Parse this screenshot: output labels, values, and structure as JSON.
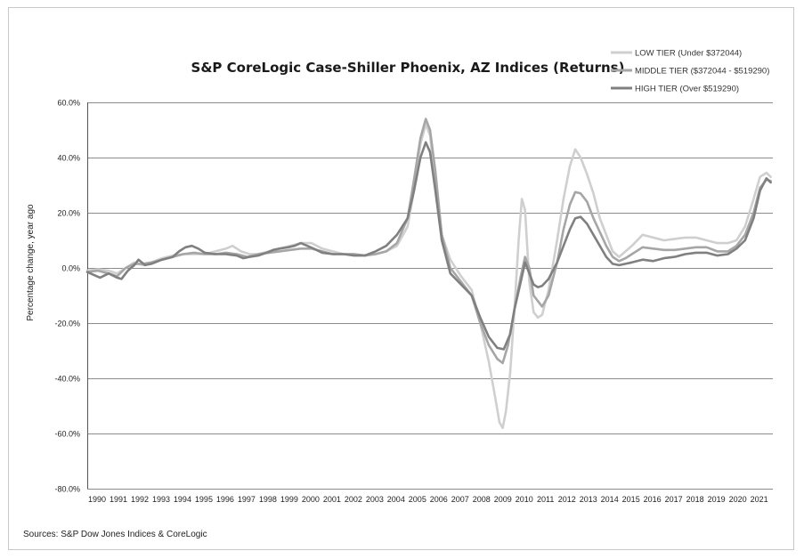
{
  "chart_data": {
    "type": "line",
    "title": "S&P CoreLogic Case-Shiller Phoenix, AZ Indices (Returns)",
    "ylabel": "Percentage change, year ago",
    "source": "Sources: S&P Dow Jones Indices & CoreLogic",
    "ylim": [
      -80,
      60
    ],
    "yticks": [
      60,
      40,
      20,
      0,
      -20,
      -40,
      -60,
      -80
    ],
    "ytick_labels": [
      "60.0%",
      "40.0%",
      "20.0%",
      "0.0%",
      "-20.0%",
      "-40.0%",
      "-60.0%",
      "-80.0%"
    ],
    "xlim": [
      1990,
      2022.1
    ],
    "xtick_labels": [
      "1990",
      "1991",
      "1992",
      "1993",
      "1994",
      "1995",
      "1996",
      "1997",
      "1998",
      "1999",
      "2000",
      "2001",
      "2002",
      "2003",
      "2004",
      "2005",
      "2006",
      "2007",
      "2008",
      "2009",
      "2010",
      "2011",
      "2012",
      "2013",
      "2014",
      "2015",
      "2016",
      "2017",
      "2018",
      "2019",
      "2020",
      "2021"
    ],
    "grid": true,
    "legend_position": "top-right",
    "series": [
      {
        "name": "LOW TIER (Under $372044)",
        "color": "#cfcfcf",
        "points": [
          [
            1990,
            -1
          ],
          [
            1990.5,
            -0.5
          ],
          [
            1991,
            -1
          ],
          [
            1991.4,
            -2
          ],
          [
            1991.8,
            0
          ],
          [
            1992.2,
            2
          ],
          [
            1992.6,
            1
          ],
          [
            1993,
            2
          ],
          [
            1993.5,
            3.5
          ],
          [
            1994,
            4.5
          ],
          [
            1994.5,
            5
          ],
          [
            1995,
            5
          ],
          [
            1995.5,
            5
          ],
          [
            1996,
            6
          ],
          [
            1996.5,
            7
          ],
          [
            1996.8,
            8
          ],
          [
            1997.2,
            6
          ],
          [
            1997.6,
            5
          ],
          [
            1998,
            5
          ],
          [
            1998.5,
            6
          ],
          [
            1999,
            7
          ],
          [
            1999.5,
            8
          ],
          [
            2000,
            9
          ],
          [
            2000.5,
            9
          ],
          [
            2001,
            7
          ],
          [
            2001.5,
            6
          ],
          [
            2002,
            5
          ],
          [
            2002.5,
            5
          ],
          [
            2003,
            4.5
          ],
          [
            2003.5,
            5
          ],
          [
            2004,
            6
          ],
          [
            2004.5,
            8
          ],
          [
            2005,
            15
          ],
          [
            2005.3,
            28
          ],
          [
            2005.6,
            45
          ],
          [
            2005.85,
            52
          ],
          [
            2006.05,
            48
          ],
          [
            2006.3,
            30
          ],
          [
            2006.6,
            12
          ],
          [
            2007,
            3
          ],
          [
            2007.5,
            -3
          ],
          [
            2008,
            -8
          ],
          [
            2008.4,
            -20
          ],
          [
            2008.8,
            -34
          ],
          [
            2009.1,
            -47
          ],
          [
            2009.3,
            -56
          ],
          [
            2009.45,
            -58
          ],
          [
            2009.6,
            -52
          ],
          [
            2009.8,
            -38
          ],
          [
            2010,
            -15
          ],
          [
            2010.2,
            10
          ],
          [
            2010.35,
            25
          ],
          [
            2010.5,
            21
          ],
          [
            2010.7,
            -5
          ],
          [
            2010.9,
            -16
          ],
          [
            2011.1,
            -18
          ],
          [
            2011.3,
            -17
          ],
          [
            2011.6,
            -8
          ],
          [
            2012,
            10
          ],
          [
            2012.3,
            25
          ],
          [
            2012.6,
            37
          ],
          [
            2012.85,
            43
          ],
          [
            2013.1,
            40
          ],
          [
            2013.4,
            34
          ],
          [
            2013.7,
            27
          ],
          [
            2014,
            18
          ],
          [
            2014.3,
            12
          ],
          [
            2014.6,
            6
          ],
          [
            2014.9,
            4
          ],
          [
            2015.2,
            6
          ],
          [
            2015.5,
            8
          ],
          [
            2016,
            12
          ],
          [
            2016.5,
            11
          ],
          [
            2017,
            10
          ],
          [
            2017.5,
            10.5
          ],
          [
            2018,
            11
          ],
          [
            2018.5,
            11
          ],
          [
            2019,
            10
          ],
          [
            2019.5,
            9
          ],
          [
            2020,
            9
          ],
          [
            2020.4,
            10
          ],
          [
            2020.8,
            15
          ],
          [
            2021.2,
            25
          ],
          [
            2021.5,
            33
          ],
          [
            2021.8,
            34.5
          ],
          [
            2022,
            33
          ]
        ]
      },
      {
        "name": "MIDDLE TIER ($372044 - $519290)",
        "color": "#a6a6a6",
        "points": [
          [
            1990,
            -1.5
          ],
          [
            1990.5,
            -1
          ],
          [
            1991,
            -2
          ],
          [
            1991.4,
            -3
          ],
          [
            1991.8,
            0
          ],
          [
            1992.2,
            1.5
          ],
          [
            1992.6,
            1.5
          ],
          [
            1993,
            2
          ],
          [
            1993.5,
            3
          ],
          [
            1994,
            4
          ],
          [
            1994.5,
            5
          ],
          [
            1995,
            5.5
          ],
          [
            1995.5,
            5
          ],
          [
            1996,
            5
          ],
          [
            1996.5,
            5.5
          ],
          [
            1997,
            5
          ],
          [
            1997.5,
            4
          ],
          [
            1998,
            5
          ],
          [
            1998.5,
            5.5
          ],
          [
            1999,
            6
          ],
          [
            1999.5,
            6.5
          ],
          [
            2000,
            7
          ],
          [
            2000.5,
            7
          ],
          [
            2001,
            6
          ],
          [
            2001.5,
            5
          ],
          [
            2002,
            5
          ],
          [
            2002.5,
            5
          ],
          [
            2003,
            4.5
          ],
          [
            2003.5,
            5
          ],
          [
            2004,
            6
          ],
          [
            2004.5,
            9
          ],
          [
            2005,
            18
          ],
          [
            2005.3,
            32
          ],
          [
            2005.6,
            47
          ],
          [
            2005.85,
            54
          ],
          [
            2006.05,
            50
          ],
          [
            2006.3,
            35
          ],
          [
            2006.6,
            12
          ],
          [
            2007,
            0
          ],
          [
            2007.5,
            -5
          ],
          [
            2008,
            -10
          ],
          [
            2008.4,
            -20
          ],
          [
            2008.8,
            -28
          ],
          [
            2009.2,
            -33
          ],
          [
            2009.45,
            -34.5
          ],
          [
            2009.7,
            -28
          ],
          [
            2010,
            -15
          ],
          [
            2010.3,
            -3
          ],
          [
            2010.5,
            4
          ],
          [
            2010.7,
            0
          ],
          [
            2010.9,
            -10
          ],
          [
            2011.1,
            -12
          ],
          [
            2011.3,
            -14
          ],
          [
            2011.6,
            -10
          ],
          [
            2012,
            2
          ],
          [
            2012.3,
            14
          ],
          [
            2012.6,
            23
          ],
          [
            2012.85,
            27.5
          ],
          [
            2013.1,
            27
          ],
          [
            2013.4,
            24
          ],
          [
            2013.7,
            18
          ],
          [
            2014,
            13
          ],
          [
            2014.3,
            8
          ],
          [
            2014.6,
            4
          ],
          [
            2014.9,
            2.5
          ],
          [
            2015.2,
            3.5
          ],
          [
            2015.5,
            5
          ],
          [
            2016,
            7.5
          ],
          [
            2016.5,
            7
          ],
          [
            2017,
            6.5
          ],
          [
            2017.5,
            6.5
          ],
          [
            2018,
            7
          ],
          [
            2018.5,
            7.5
          ],
          [
            2019,
            7.5
          ],
          [
            2019.5,
            6
          ],
          [
            2020,
            6
          ],
          [
            2020.4,
            8
          ],
          [
            2020.8,
            12
          ],
          [
            2021.2,
            20
          ],
          [
            2021.5,
            29
          ],
          [
            2021.8,
            32
          ],
          [
            2022,
            31.5
          ]
        ]
      },
      {
        "name": "HIGH TIER (Over $519290)",
        "color": "#808080",
        "points": [
          [
            1990,
            -1.5
          ],
          [
            1990.3,
            -2.5
          ],
          [
            1990.6,
            -3.5
          ],
          [
            1991,
            -2
          ],
          [
            1991.4,
            -3.5
          ],
          [
            1991.6,
            -4
          ],
          [
            1991.9,
            -1
          ],
          [
            1992.2,
            1
          ],
          [
            1992.4,
            3
          ],
          [
            1992.7,
            1
          ],
          [
            1993,
            1.5
          ],
          [
            1993.5,
            3
          ],
          [
            1994,
            4
          ],
          [
            1994.3,
            6
          ],
          [
            1994.6,
            7.5
          ],
          [
            1994.9,
            8
          ],
          [
            1995.2,
            7
          ],
          [
            1995.5,
            5.5
          ],
          [
            1996,
            5
          ],
          [
            1996.5,
            5
          ],
          [
            1997,
            4.5
          ],
          [
            1997.3,
            3.5
          ],
          [
            1997.6,
            4
          ],
          [
            1998,
            4.5
          ],
          [
            1998.4,
            5.5
          ],
          [
            1998.7,
            6.5
          ],
          [
            1999,
            7
          ],
          [
            1999.4,
            7.5
          ],
          [
            1999.7,
            8
          ],
          [
            2000,
            9
          ],
          [
            2000.3,
            8
          ],
          [
            2000.6,
            7
          ],
          [
            2001,
            5.5
          ],
          [
            2001.5,
            5
          ],
          [
            2002,
            5
          ],
          [
            2002.5,
            4.5
          ],
          [
            2003,
            4.5
          ],
          [
            2003.5,
            6
          ],
          [
            2004,
            8
          ],
          [
            2004.5,
            12
          ],
          [
            2005,
            18
          ],
          [
            2005.3,
            28
          ],
          [
            2005.6,
            40
          ],
          [
            2005.85,
            45.5
          ],
          [
            2006.05,
            42
          ],
          [
            2006.3,
            28
          ],
          [
            2006.6,
            10
          ],
          [
            2007,
            -2
          ],
          [
            2007.5,
            -6
          ],
          [
            2008,
            -10
          ],
          [
            2008.4,
            -18
          ],
          [
            2008.8,
            -25
          ],
          [
            2009.2,
            -29
          ],
          [
            2009.5,
            -29.5
          ],
          [
            2009.8,
            -24
          ],
          [
            2010,
            -15
          ],
          [
            2010.3,
            -5
          ],
          [
            2010.5,
            2
          ],
          [
            2010.7,
            -2
          ],
          [
            2010.9,
            -6
          ],
          [
            2011.1,
            -7
          ],
          [
            2011.3,
            -6.5
          ],
          [
            2011.6,
            -4
          ],
          [
            2012,
            2
          ],
          [
            2012.3,
            8
          ],
          [
            2012.6,
            14
          ],
          [
            2012.85,
            18
          ],
          [
            2013.1,
            18.5
          ],
          [
            2013.4,
            16
          ],
          [
            2013.7,
            12
          ],
          [
            2014,
            8
          ],
          [
            2014.3,
            4
          ],
          [
            2014.6,
            1.5
          ],
          [
            2014.9,
            1
          ],
          [
            2015.2,
            1.5
          ],
          [
            2015.5,
            2
          ],
          [
            2016,
            3
          ],
          [
            2016.5,
            2.5
          ],
          [
            2017,
            3.5
          ],
          [
            2017.5,
            4
          ],
          [
            2018,
            5
          ],
          [
            2018.5,
            5.5
          ],
          [
            2019,
            5.5
          ],
          [
            2019.5,
            4.5
          ],
          [
            2020,
            5
          ],
          [
            2020.4,
            7
          ],
          [
            2020.8,
            10
          ],
          [
            2021.2,
            18
          ],
          [
            2021.5,
            28
          ],
          [
            2021.8,
            32.5
          ],
          [
            2022,
            31
          ]
        ]
      }
    ]
  }
}
